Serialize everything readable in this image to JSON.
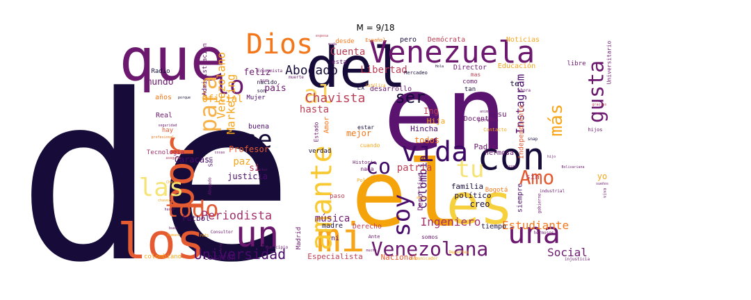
{
  "title": "M = 9/18",
  "words": [
    {
      "text": "de",
      "color": "#160b39",
      "vertical": false
    },
    {
      "text": "en",
      "color": "#5a136e",
      "vertical": false
    },
    {
      "text": "el",
      "color": "#f5a30b",
      "vertical": false
    },
    {
      "text": "que",
      "color": "#6b186e",
      "vertical": false
    },
    {
      "text": "del",
      "color": "#160b39",
      "vertical": false
    },
    {
      "text": "los",
      "color": "#e45a31",
      "vertical": false
    },
    {
      "text": "con",
      "color": "#160b39",
      "vertical": false
    },
    {
      "text": "por",
      "color": "#e45a31",
      "vertical": true
    },
    {
      "text": "es",
      "color": "#f7d13d",
      "vertical": false
    },
    {
      "text": "Venezuela",
      "color": "#6b186e",
      "vertical": false
    },
    {
      "text": "mi",
      "color": "#f7a51a",
      "vertical": false
    },
    {
      "text": "un",
      "color": "#6b186e",
      "vertical": false
    },
    {
      "text": "Dios",
      "color": "#f3771a",
      "vertical": false
    },
    {
      "text": "vida",
      "color": "#3c0965",
      "vertical": false
    },
    {
      "text": "amante",
      "color": "#f8c932",
      "vertical": true
    },
    {
      "text": "una",
      "color": "#6b186e",
      "vertical": false
    },
    {
      "text": "las",
      "color": "#f6e376",
      "vertical": false
    },
    {
      "text": "todo",
      "color": "#e45a31",
      "vertical": false
    },
    {
      "text": "para",
      "color": "#f7b24a",
      "vertical": true
    },
    {
      "text": "al",
      "color": "#fbd35c",
      "vertical": false
    },
    {
      "text": "se",
      "color": "#160b39",
      "vertical": false
    },
    {
      "text": "lo",
      "color": "#6b186e",
      "vertical": false
    },
    {
      "text": "soy",
      "color": "#4a0c6b",
      "vertical": true
    },
    {
      "text": "tu",
      "color": "#f6e376",
      "vertical": false
    },
    {
      "text": "Venezolana",
      "color": "#6b186e",
      "vertical": false
    },
    {
      "text": "gusta",
      "color": "#6b186e",
      "vertical": true
    },
    {
      "text": "co",
      "color": "#3c0965",
      "vertical": false
    },
    {
      "text": "Amo",
      "color": "#e45a31",
      "vertical": false
    },
    {
      "text": "más",
      "color": "#f7a51a",
      "vertical": true
    },
    {
      "text": "ser",
      "color": "#160b39",
      "vertical": false
    },
    {
      "text": "Universidad",
      "color": "#4a0c6b",
      "vertical": false
    },
    {
      "text": "Periodista",
      "color": "#a3306b",
      "vertical": false
    },
    {
      "text": "Abogado",
      "color": "#160b39",
      "vertical": false
    },
    {
      "text": "Chavista",
      "color": "#bd3e55",
      "vertical": false
    },
    {
      "text": "Estudiante",
      "color": "#f3771a",
      "vertical": false
    },
    {
      "text": "Ingeniero",
      "color": "#a3306b",
      "vertical": false
    },
    {
      "text": "Venezolano",
      "color": "#f7a51a",
      "vertical": true
    },
    {
      "text": "Marketing",
      "color": "#f7a51a",
      "vertical": true
    },
    {
      "text": "Instagram",
      "color": "#4a0c6b",
      "vertical": true
    },
    {
      "text": "Colombia",
      "color": "#4a0c6b",
      "vertical": true
    },
    {
      "text": "Social",
      "color": "#6b186e",
      "vertical": false
    },
    {
      "text": "música",
      "color": "#6b186e",
      "vertical": false
    },
    {
      "text": "patria",
      "color": "#bd3e55",
      "vertical": false
    },
    {
      "text": "hasta",
      "color": "#bd3e55",
      "vertical": false
    },
    {
      "text": "Libertad",
      "color": "#bd3e55",
      "vertical": false
    },
    {
      "text": "Cuenta",
      "color": "#bd3e55",
      "vertical": false
    },
    {
      "text": "Oficial",
      "color": "#f7a51a",
      "vertical": false
    },
    {
      "text": "mundo",
      "color": "#6b186e",
      "vertical": false
    },
    {
      "text": "feliz",
      "color": "#6b186e",
      "vertical": false
    },
    {
      "text": "país",
      "color": "#6b186e",
      "vertical": false
    },
    {
      "text": "paz",
      "color": "#f7a51a",
      "vertical": false
    },
    {
      "text": "si",
      "color": "#bd3e55",
      "vertical": false
    },
    {
      "text": "justicia",
      "color": "#4a0c6b",
      "vertical": false
    },
    {
      "text": "Profesor",
      "color": "#e45a31",
      "vertical": false
    },
    {
      "text": "Caracas",
      "color": "#4a0c6b",
      "vertical": false
    },
    {
      "text": "Fútbol",
      "color": "#4a0c6b",
      "vertical": false
    },
    {
      "text": "corazón",
      "color": "#4a0c6b",
      "vertical": false
    },
    {
      "text": "Especialista",
      "color": "#bd3e55",
      "vertical": false
    },
    {
      "text": "Nacional",
      "color": "#e45a31",
      "vertical": false
    },
    {
      "text": "creo",
      "color": "#160b39",
      "vertical": false
    },
    {
      "text": "familia",
      "color": "#160b39",
      "vertical": false
    },
    {
      "text": "político",
      "color": "#160b39",
      "vertical": false
    },
    {
      "text": "tiempo",
      "color": "#160b39",
      "vertical": false
    },
    {
      "text": "sin",
      "color": "#bd3e55",
      "vertical": false
    },
    {
      "text": "yo",
      "color": "#f7a51a",
      "vertical": false
    },
    {
      "text": "Padre",
      "color": "#6b186e",
      "vertical": false
    },
    {
      "text": "hermosa",
      "color": "#6b186e",
      "vertical": false
    },
    {
      "text": "todos",
      "color": "#f3771a",
      "vertical": false
    },
    {
      "text": "mejor",
      "color": "#f3771a",
      "vertical": false
    },
    {
      "text": "Ing",
      "color": "#bd3e55",
      "vertical": false
    },
    {
      "text": "Hija",
      "color": "#f7a51a",
      "vertical": false
    },
    {
      "text": "Hincha",
      "color": "#4a0c6b",
      "vertical": false
    },
    {
      "text": "Docente",
      "color": "#6b186e",
      "vertical": false
    },
    {
      "text": "Director",
      "color": "#6b186e",
      "vertical": false
    },
    {
      "text": "Educación",
      "color": "#f7a51a",
      "vertical": false
    },
    {
      "text": "Demócrata",
      "color": "#bd3e55",
      "vertical": false
    },
    {
      "text": "Noticias",
      "color": "#f7a51a",
      "vertical": false
    },
    {
      "text": "desarrollo",
      "color": "#6b186e",
      "vertical": false
    },
    {
      "text": "Amor",
      "color": "#f3771a",
      "vertical": true
    },
    {
      "text": "Deportivo",
      "color": "#6b186e",
      "vertical": true
    },
    {
      "text": "Independiente",
      "color": "#e45a31",
      "vertical": true
    },
    {
      "text": "siempre",
      "color": "#4a0c6b",
      "vertical": true
    },
    {
      "text": "buena",
      "color": "#4a0c6b",
      "vertical": false
    },
    {
      "text": "ni",
      "color": "#4a0c6b",
      "vertical": false
    },
    {
      "text": "madre",
      "color": "#160b39",
      "vertical": false
    },
    {
      "text": "Derecho",
      "color": "#bd3e55",
      "vertical": false
    },
    {
      "text": "verdad",
      "color": "#160b39",
      "vertical": false
    },
    {
      "text": "Real",
      "color": "#6b186e",
      "vertical": false
    },
    {
      "text": "Radio",
      "color": "#160b39",
      "vertical": false
    },
    {
      "text": "mis",
      "color": "#6b186e",
      "vertical": true
    },
    {
      "text": "años",
      "color": "#f3771a",
      "vertical": false
    },
    {
      "text": "hay",
      "color": "#e45a31",
      "vertical": false
    },
    {
      "text": "Tecnología",
      "color": "#a3306b",
      "vertical": false
    },
    {
      "text": "colombiano",
      "color": "#f7a51a",
      "vertical": false
    },
    {
      "text": "Mujer",
      "color": "#4a0c6b",
      "vertical": false
    },
    {
      "text": "Ex",
      "color": "#160b39",
      "vertical": false
    },
    {
      "text": "te",
      "color": "#160b39",
      "vertical": false
    },
    {
      "text": "su",
      "color": "#6b186e",
      "vertical": false
    },
    {
      "text": "como",
      "color": "#6b186e",
      "vertical": false
    },
    {
      "text": "pero",
      "color": "#160b39",
      "vertical": false
    },
    {
      "text": "tan",
      "color": "#160b39",
      "vertical": false
    },
    {
      "text": "desde",
      "color": "#f3771a",
      "vertical": false
    },
    {
      "text": "esta",
      "color": "#6b186e",
      "vertical": false
    },
    {
      "text": "Bogotá",
      "color": "#f3771a",
      "vertical": false
    },
    {
      "text": "Madrid",
      "color": "#6b186e",
      "vertical": true
    },
    {
      "text": "este",
      "color": "#160b39",
      "vertical": false
    },
    {
      "text": "paso",
      "color": "#bd3e55",
      "vertical": false
    },
    {
      "text": "nada",
      "color": "#6b186e",
      "vertical": false
    },
    {
      "text": "somos",
      "color": "#6b186e",
      "vertical": false
    },
    {
      "text": "cuando",
      "color": "#f7a51a",
      "vertical": false
    },
    {
      "text": "estar",
      "color": "#160b39",
      "vertical": false
    },
    {
      "text": "libre",
      "color": "#6b186e",
      "vertical": false
    },
    {
      "text": "mas",
      "color": "#bd3e55",
      "vertical": false
    },
    {
      "text": "Universitario",
      "color": "#6b186e",
      "vertical": true
    },
    {
      "text": "Administración",
      "color": "#6b186e",
      "vertical": true
    },
    {
      "text": "nacido",
      "color": "#160b39",
      "vertical": false
    },
    {
      "text": "son",
      "color": "#160b39",
      "vertical": false
    },
    {
      "text": "sus",
      "color": "#6b186e",
      "vertical": false
    },
    {
      "text": "hijos",
      "color": "#6b186e",
      "vertical": false
    },
    {
      "text": "San",
      "color": "#4a0c6b",
      "vertical": true
    },
    {
      "text": "Estado",
      "color": "#6b186e",
      "vertical": true
    },
    {
      "text": "Política",
      "color": "#f7a51a",
      "vertical": false
    },
    {
      "text": "Historia",
      "color": "#6b186e",
      "vertical": false
    },
    {
      "text": "Mercadeo",
      "color": "#160b39",
      "vertical": false
    },
    {
      "text": "Español",
      "color": "#f3771a",
      "vertical": false
    },
    {
      "text": "persona",
      "color": "#6b186e",
      "vertical": false
    },
    {
      "text": "Contacto",
      "color": "#f7a51a",
      "vertical": false
    },
    {
      "text": "snap",
      "color": "#160b39",
      "vertical": false
    },
    {
      "text": "ahora",
      "color": "#6b186e",
      "vertical": false
    },
    {
      "text": "Ante",
      "color": "#6b186e",
      "vertical": false
    },
    {
      "text": "viva",
      "color": "#6b186e",
      "vertical": true
    },
    {
      "text": "injusticia",
      "color": "#6b186e",
      "vertical": false
    },
    {
      "text": "Municipio",
      "color": "#6b186e",
      "vertical": false
    },
    {
      "text": "Consultor",
      "color": "#6b186e",
      "vertical": false
    },
    {
      "text": "hermosos",
      "color": "#6b186e",
      "vertical": false
    },
    {
      "text": "industrial",
      "color": "#6b186e",
      "vertical": false
    },
    {
      "text": "Deportes",
      "color": "#f7a51a",
      "vertical": false
    },
    {
      "text": "Economista",
      "color": "#6b186e",
      "vertical": false
    },
    {
      "text": "muerte",
      "color": "#6b186e",
      "vertical": false
    },
    {
      "text": "Católica",
      "color": "#f7a51a",
      "vertical": false
    },
    {
      "text": "animales",
      "color": "#6b186e",
      "vertical": false
    },
    {
      "text": "esposa",
      "color": "#bd3e55",
      "vertical": false
    },
    {
      "text": "moda",
      "color": "#6b186e",
      "vertical": false
    },
    {
      "text": "Hola",
      "color": "#160b39",
      "vertical": false
    },
    {
      "text": "porque",
      "color": "#160b39",
      "vertical": false
    },
    {
      "text": "gracias",
      "color": "#bd3e55",
      "vertical": false
    },
    {
      "text": "profesional",
      "color": "#f3771a",
      "vertical": false
    },
    {
      "text": "amigos",
      "color": "#f7a51a",
      "vertical": false
    },
    {
      "text": "hacer",
      "color": "#6b186e",
      "vertical": false
    },
    {
      "text": "buen",
      "color": "#6b186e",
      "vertical": false
    },
    {
      "text": "humano",
      "color": "#f7a51a",
      "vertical": false
    },
    {
      "text": "PAÍS",
      "color": "#f7a51a",
      "vertical": false
    },
    {
      "text": "Chavez",
      "color": "#f7a51a",
      "vertical": false
    },
    {
      "text": "Arte",
      "color": "#6b186e",
      "vertical": true
    },
    {
      "text": "cosas",
      "color": "#6b186e",
      "vertical": false
    },
    {
      "text": "sueños",
      "color": "#6b186e",
      "vertical": false
    },
    {
      "text": "gobierno",
      "color": "#6b186e",
      "vertical": true
    },
    {
      "text": "Bolivariana",
      "color": "#6b186e",
      "vertical": false
    },
    {
      "text": "mucho",
      "color": "#6b186e",
      "vertical": false
    },
    {
      "text": "vivir",
      "color": "#f7a51a",
      "vertical": false
    },
    {
      "text": "joven",
      "color": "#6b186e",
      "vertical": false
    },
    {
      "text": "hijo",
      "color": "#6b186e",
      "vertical": false
    },
    {
      "text": "seguridad",
      "color": "#6b186e",
      "vertical": false
    },
    {
      "text": "sector",
      "color": "#6b186e",
      "vertical": false
    },
    {
      "text": "asegura",
      "color": "#bd3e55",
      "vertical": false
    },
    {
      "text": "Abogado",
      "color": "#6b186e",
      "vertical": true
    },
    {
      "text": "chavez",
      "color": "#f7a51a",
      "vertical": false
    },
    {
      "text": "comunicador",
      "color": "#f7a51a",
      "vertical": false
    }
  ]
}
